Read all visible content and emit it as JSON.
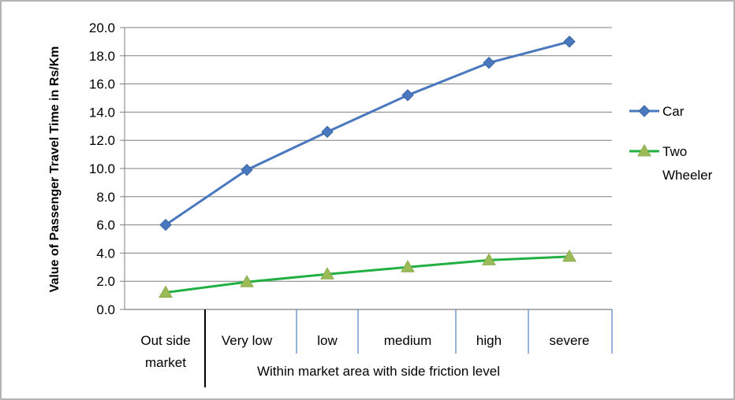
{
  "colors": {
    "car": "#4a78be",
    "two_wheeler": "#22b043",
    "marker_fill": "#9bbb59",
    "grid": "#7f7f7f",
    "separator": "#4f81bd",
    "frame": "#9a9a9a"
  },
  "chart_data": {
    "type": "line",
    "title": "",
    "ylabel": "Value of Passenger Travel Time in Rs/Km",
    "ylim": [
      0,
      20
    ],
    "ytick_step": 2,
    "grid": true,
    "legend_position": "right",
    "categories": [
      "Out side market",
      "Very low",
      "low",
      "medium",
      "high",
      "severe"
    ],
    "category_label_lines": [
      [
        "Out side",
        "market"
      ],
      [
        "Very low"
      ],
      [
        "low"
      ],
      [
        "medium"
      ],
      [
        "high"
      ],
      [
        "severe"
      ]
    ],
    "group_label": "Within market area with side friction level",
    "yticks": [
      "0.0",
      "2.0",
      "4.0",
      "6.0",
      "8.0",
      "10.0",
      "12.0",
      "14.0",
      "16.0",
      "18.0",
      "20.0"
    ],
    "series": [
      {
        "name": "Car",
        "legend_lines": [
          "Car"
        ],
        "marker": "diamond",
        "values": [
          6.0,
          9.9,
          12.6,
          15.2,
          17.5,
          19.0
        ]
      },
      {
        "name": "Two Wheeler",
        "legend_lines": [
          "Two",
          "Wheeler"
        ],
        "marker": "triangle",
        "values": [
          1.2,
          1.95,
          2.5,
          3.0,
          3.5,
          3.75
        ]
      }
    ]
  }
}
